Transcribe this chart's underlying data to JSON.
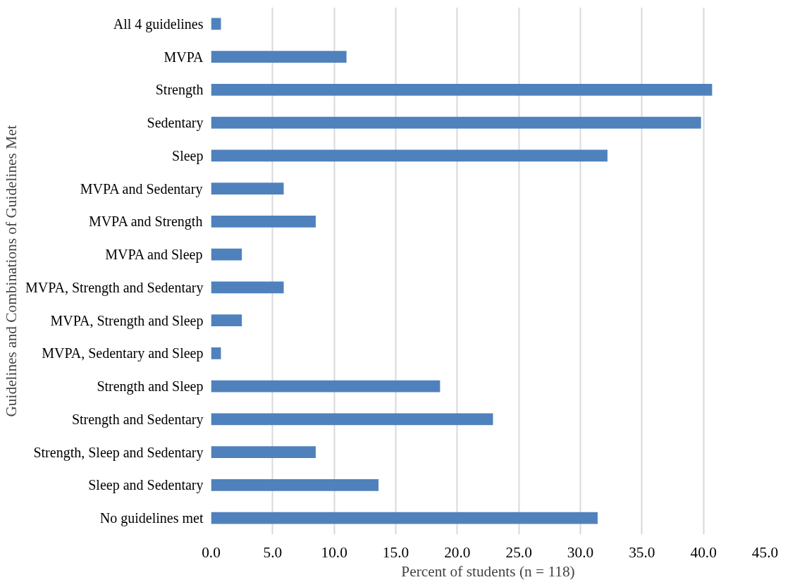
{
  "chart_data": {
    "type": "bar",
    "orientation": "horizontal",
    "xlabel": "Percent of students (n = 118)",
    "ylabel": "Guidelines and Combinations of Guidelines Met",
    "categories": [
      "All 4 guidelines",
      "MVPA",
      "Strength",
      "Sedentary",
      "Sleep",
      "MVPA and Sedentary",
      "MVPA and Strength",
      "MVPA and Sleep",
      "MVPA, Strength and Sedentary",
      "MVPA, Strength and Sleep",
      "MVPA, Sedentary and Sleep",
      "Strength and Sleep",
      "Strength and Sedentary",
      "Strength, Sleep and Sedentary",
      "Sleep and Sedentary",
      "No guidelines met"
    ],
    "values": [
      0.8,
      11.0,
      40.7,
      39.8,
      32.2,
      5.9,
      8.5,
      2.5,
      5.9,
      2.5,
      0.8,
      18.6,
      22.9,
      8.5,
      13.6,
      31.4
    ],
    "color": "#4f81bd",
    "xlim": [
      0,
      45
    ],
    "xticks": [
      {
        "value": 0,
        "label": "0.0"
      },
      {
        "value": 5,
        "label": "5.0"
      },
      {
        "value": 10,
        "label": "10.0"
      },
      {
        "value": 15,
        "label": "15.0"
      },
      {
        "value": 20,
        "label": "20.0"
      },
      {
        "value": 25,
        "label": "25.0"
      },
      {
        "value": 30,
        "label": "30.0"
      },
      {
        "value": 35,
        "label": "35.0"
      },
      {
        "value": 40,
        "label": "40.0"
      },
      {
        "value": 45,
        "label": "45.0"
      }
    ],
    "grid": "x"
  }
}
